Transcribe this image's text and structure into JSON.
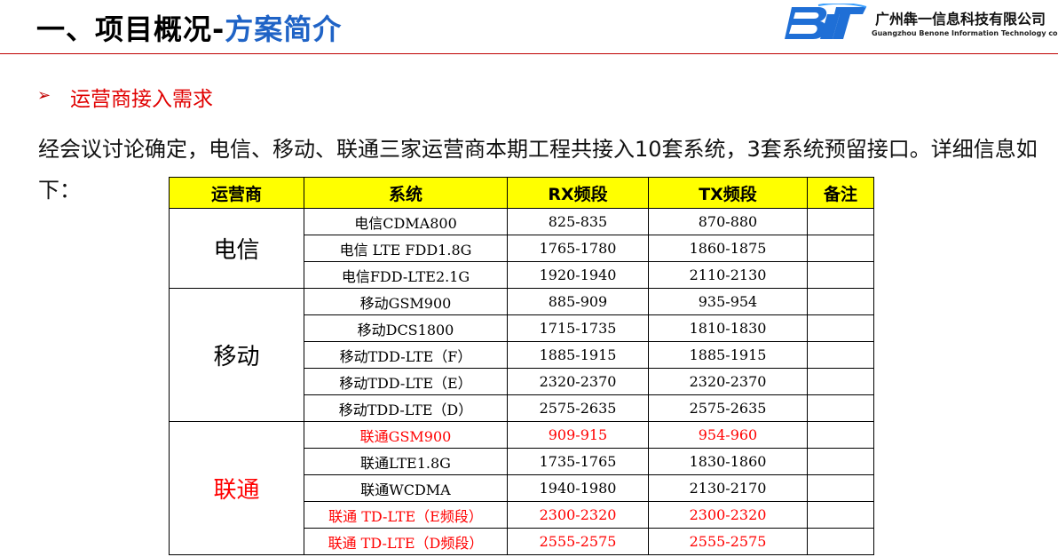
{
  "header": {
    "title_black": "一、项目概况-",
    "title_blue": "方案简介",
    "logo_mark": "BJT",
    "company_cn": "广州犇一信息科技有限公司",
    "company_en": "Guangzhou Benone Information Technology co., LTD"
  },
  "colors": {
    "title_blue": "#1f63c6",
    "accent_red": "#c00000",
    "header_yellow": "#ffff00",
    "logo_blue": "#1f6fd6"
  },
  "section": {
    "bullet": "➢",
    "heading": "运营商接入需求"
  },
  "intro": "经会议讨论确定，电信、移动、联通三家运营商本期工程共接入10套系统，3套系统预留接口。详细信息如下：",
  "table": {
    "headers": [
      "运营商",
      "系统",
      "RX频段",
      "TX频段",
      "备注"
    ],
    "groups": [
      {
        "operator": "电信",
        "rows": [
          {
            "system": "电信CDMA800",
            "rx": "825-835",
            "tx": "870-880",
            "note": "",
            "red": false
          },
          {
            "system": "电信 LTE FDD1.8G",
            "rx": "1765-1780",
            "tx": "1860-1875",
            "note": "",
            "red": false
          },
          {
            "system": "电信FDD-LTE2.1G",
            "rx": "1920-1940",
            "tx": "2110-2130",
            "note": "",
            "red": false
          }
        ]
      },
      {
        "operator": "移动",
        "rows": [
          {
            "system": "移动GSM900",
            "rx": "885-909",
            "tx": "935-954",
            "note": "",
            "red": false
          },
          {
            "system": "移动DCS1800",
            "rx": "1715-1735",
            "tx": "1810-1830",
            "note": "",
            "red": false
          },
          {
            "system": "移动TDD-LTE（F）",
            "rx": "1885-1915",
            "tx": "1885-1915",
            "note": "",
            "red": false
          },
          {
            "system": "移动TDD-LTE（E）",
            "rx": "2320-2370",
            "tx": "2320-2370",
            "note": "",
            "red": false
          },
          {
            "system": "移动TDD-LTE（D）",
            "rx": "2575-2635",
            "tx": "2575-2635",
            "note": "",
            "red": false
          }
        ]
      },
      {
        "operator": "联通",
        "rows": [
          {
            "system": "联通GSM900",
            "rx": "909-915",
            "tx": "954-960",
            "note": "",
            "red": true
          },
          {
            "system": "联通LTE1.8G",
            "rx": "1735-1765",
            "tx": "1830-1860",
            "note": "",
            "red": false
          },
          {
            "system": "联通WCDMA",
            "rx": "1940-1980",
            "tx": "2130-2170",
            "note": "",
            "red": false
          },
          {
            "system": "联通 TD-LTE（E频段）",
            "rx": "2300-2320",
            "tx": "2300-2320",
            "note": "",
            "red": true
          },
          {
            "system": "联通 TD-LTE（D频段）",
            "rx": "2555-2575",
            "tx": "2555-2575",
            "note": "",
            "red": true
          }
        ]
      }
    ]
  }
}
